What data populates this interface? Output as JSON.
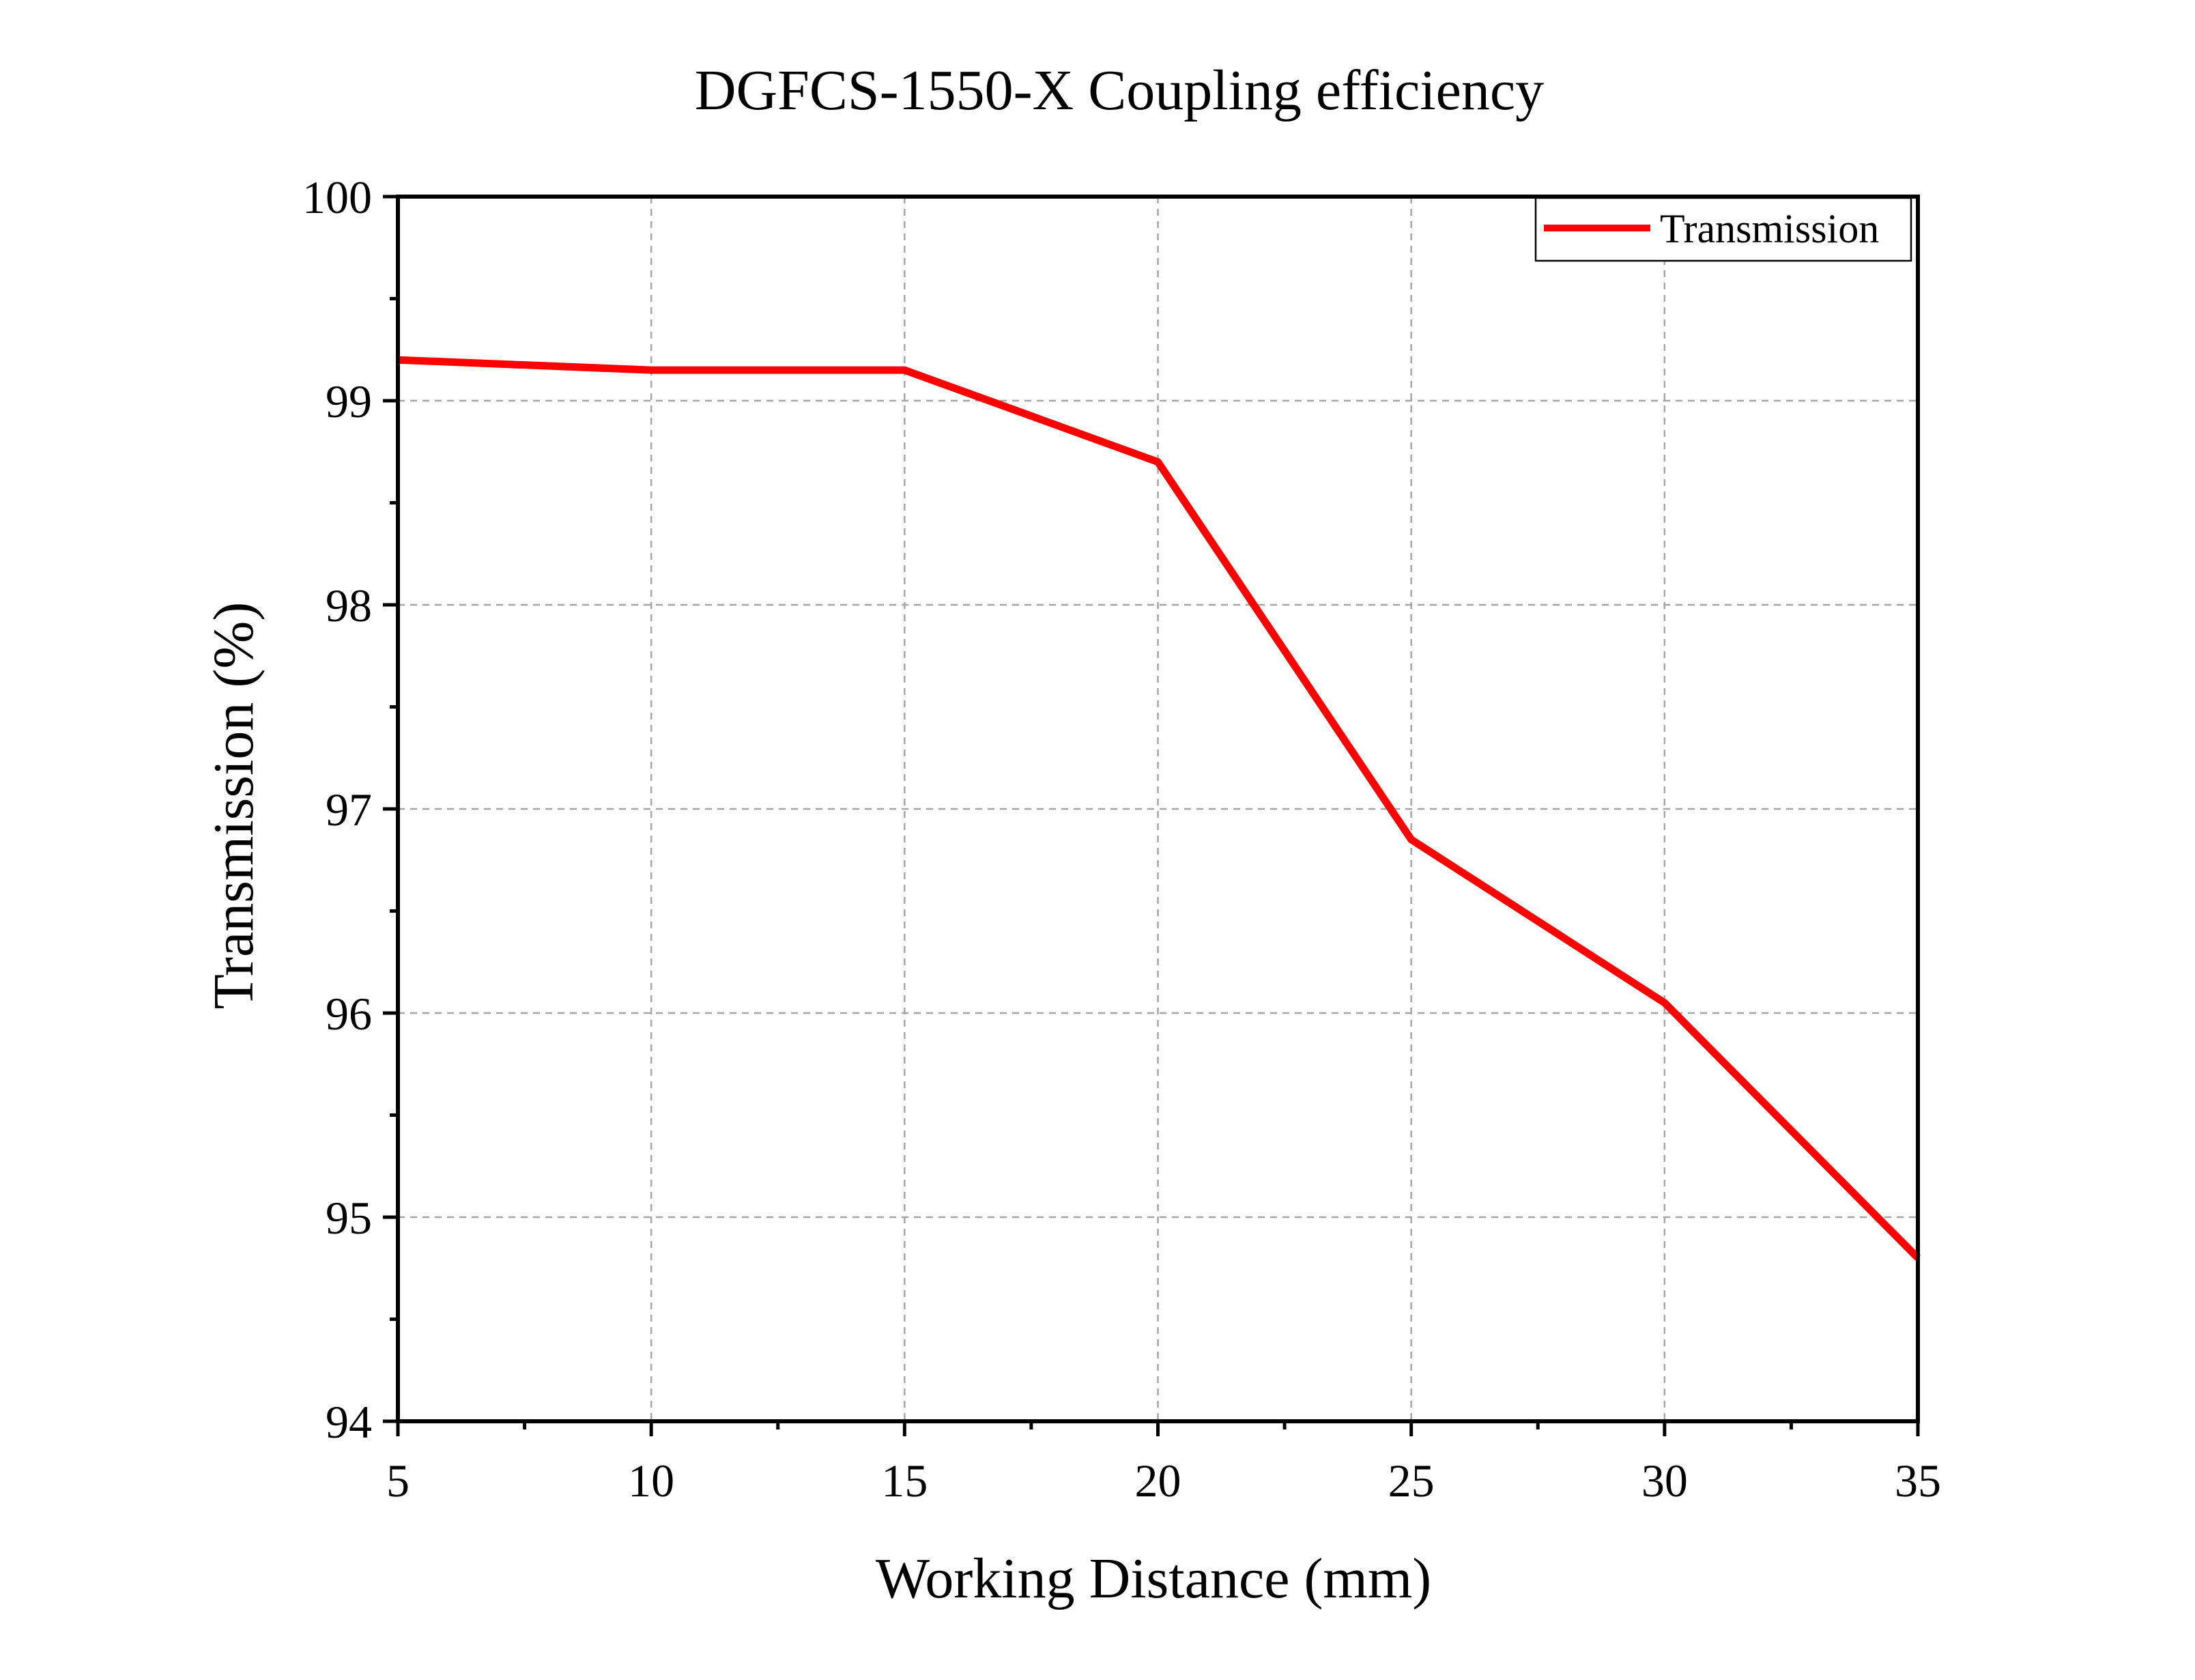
{
  "chart_data": {
    "type": "line",
    "title": "DGFCS-1550-X Coupling efficiency",
    "xlabel": "Working Distance (mm)",
    "ylabel": "Transmission (%)",
    "xlim": [
      5,
      35
    ],
    "ylim": [
      94,
      100
    ],
    "xticks": [
      5,
      10,
      15,
      20,
      25,
      30,
      35
    ],
    "yticks": [
      94,
      95,
      96,
      97,
      98,
      99,
      100
    ],
    "grid": true,
    "legend_position": "top-right",
    "series": [
      {
        "name": "Transmission",
        "color": "#ff0000",
        "x": [
          5,
          10,
          15,
          20,
          25,
          30,
          35
        ],
        "y": [
          99.2,
          99.15,
          99.15,
          98.7,
          96.85,
          96.05,
          94.8
        ]
      }
    ]
  }
}
